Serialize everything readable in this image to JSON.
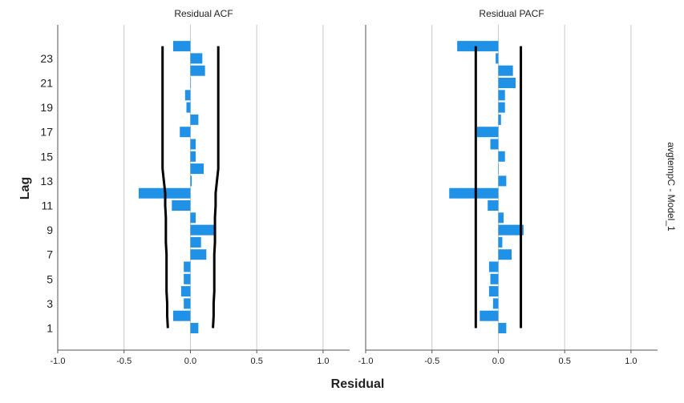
{
  "chart_data": {
    "type": "bar",
    "orientation": "horizontal",
    "xlabel": "Residual",
    "ylabel": "Lag",
    "facet_label": "avgtempC - Model_1",
    "xlim": [
      -1.0,
      1.2
    ],
    "x_ticks": [
      "-1.0",
      "-0.5",
      "0.0",
      "0.5",
      "1.0"
    ],
    "x_tick_values": [
      -1.0,
      -0.5,
      0.0,
      0.5,
      1.0
    ],
    "y_ticks": [
      1,
      3,
      5,
      7,
      9,
      11,
      13,
      15,
      17,
      19,
      21,
      23
    ],
    "lags": [
      1,
      2,
      3,
      4,
      5,
      6,
      7,
      8,
      9,
      10,
      11,
      12,
      13,
      14,
      15,
      16,
      17,
      18,
      19,
      20,
      21,
      22,
      23,
      24
    ],
    "grid": true,
    "bar_color": "#1f91e6",
    "limit_color": "#000000",
    "panels": [
      {
        "title": "Residual ACF",
        "values": [
          0.06,
          -0.13,
          -0.05,
          -0.07,
          -0.05,
          -0.05,
          0.12,
          0.08,
          0.18,
          0.04,
          -0.14,
          -0.39,
          0.01,
          0.1,
          0.04,
          0.04,
          -0.08,
          0.06,
          -0.03,
          -0.04,
          0.0,
          0.11,
          0.09,
          -0.13
        ],
        "upper_limit": [
          0.17,
          0.175,
          0.175,
          0.18,
          0.18,
          0.18,
          0.18,
          0.185,
          0.185,
          0.185,
          0.19,
          0.19,
          0.2,
          0.21,
          0.21,
          0.21,
          0.21,
          0.21,
          0.21,
          0.21,
          0.21,
          0.21,
          0.21,
          0.21
        ],
        "lower_limit": [
          -0.17,
          -0.175,
          -0.175,
          -0.18,
          -0.18,
          -0.18,
          -0.18,
          -0.185,
          -0.185,
          -0.185,
          -0.19,
          -0.19,
          -0.2,
          -0.21,
          -0.21,
          -0.21,
          -0.21,
          -0.21,
          -0.21,
          -0.21,
          -0.21,
          -0.21,
          -0.21,
          -0.21
        ]
      },
      {
        "title": "Residual PACF",
        "values": [
          0.06,
          -0.14,
          -0.04,
          -0.07,
          -0.06,
          -0.07,
          0.1,
          0.03,
          0.19,
          0.04,
          -0.08,
          -0.37,
          0.06,
          0.0,
          0.05,
          -0.06,
          -0.16,
          0.02,
          0.05,
          0.05,
          0.13,
          0.11,
          -0.02,
          -0.31
        ],
        "upper_limit": [
          0.17,
          0.17,
          0.17,
          0.17,
          0.17,
          0.17,
          0.17,
          0.17,
          0.17,
          0.17,
          0.17,
          0.17,
          0.17,
          0.17,
          0.17,
          0.17,
          0.17,
          0.17,
          0.17,
          0.17,
          0.17,
          0.17,
          0.17,
          0.17
        ],
        "lower_limit": [
          -0.17,
          -0.17,
          -0.17,
          -0.17,
          -0.17,
          -0.17,
          -0.17,
          -0.17,
          -0.17,
          -0.17,
          -0.17,
          -0.17,
          -0.17,
          -0.17,
          -0.17,
          -0.17,
          -0.17,
          -0.17,
          -0.17,
          -0.17,
          -0.17,
          -0.17,
          -0.17,
          -0.17
        ]
      }
    ]
  }
}
